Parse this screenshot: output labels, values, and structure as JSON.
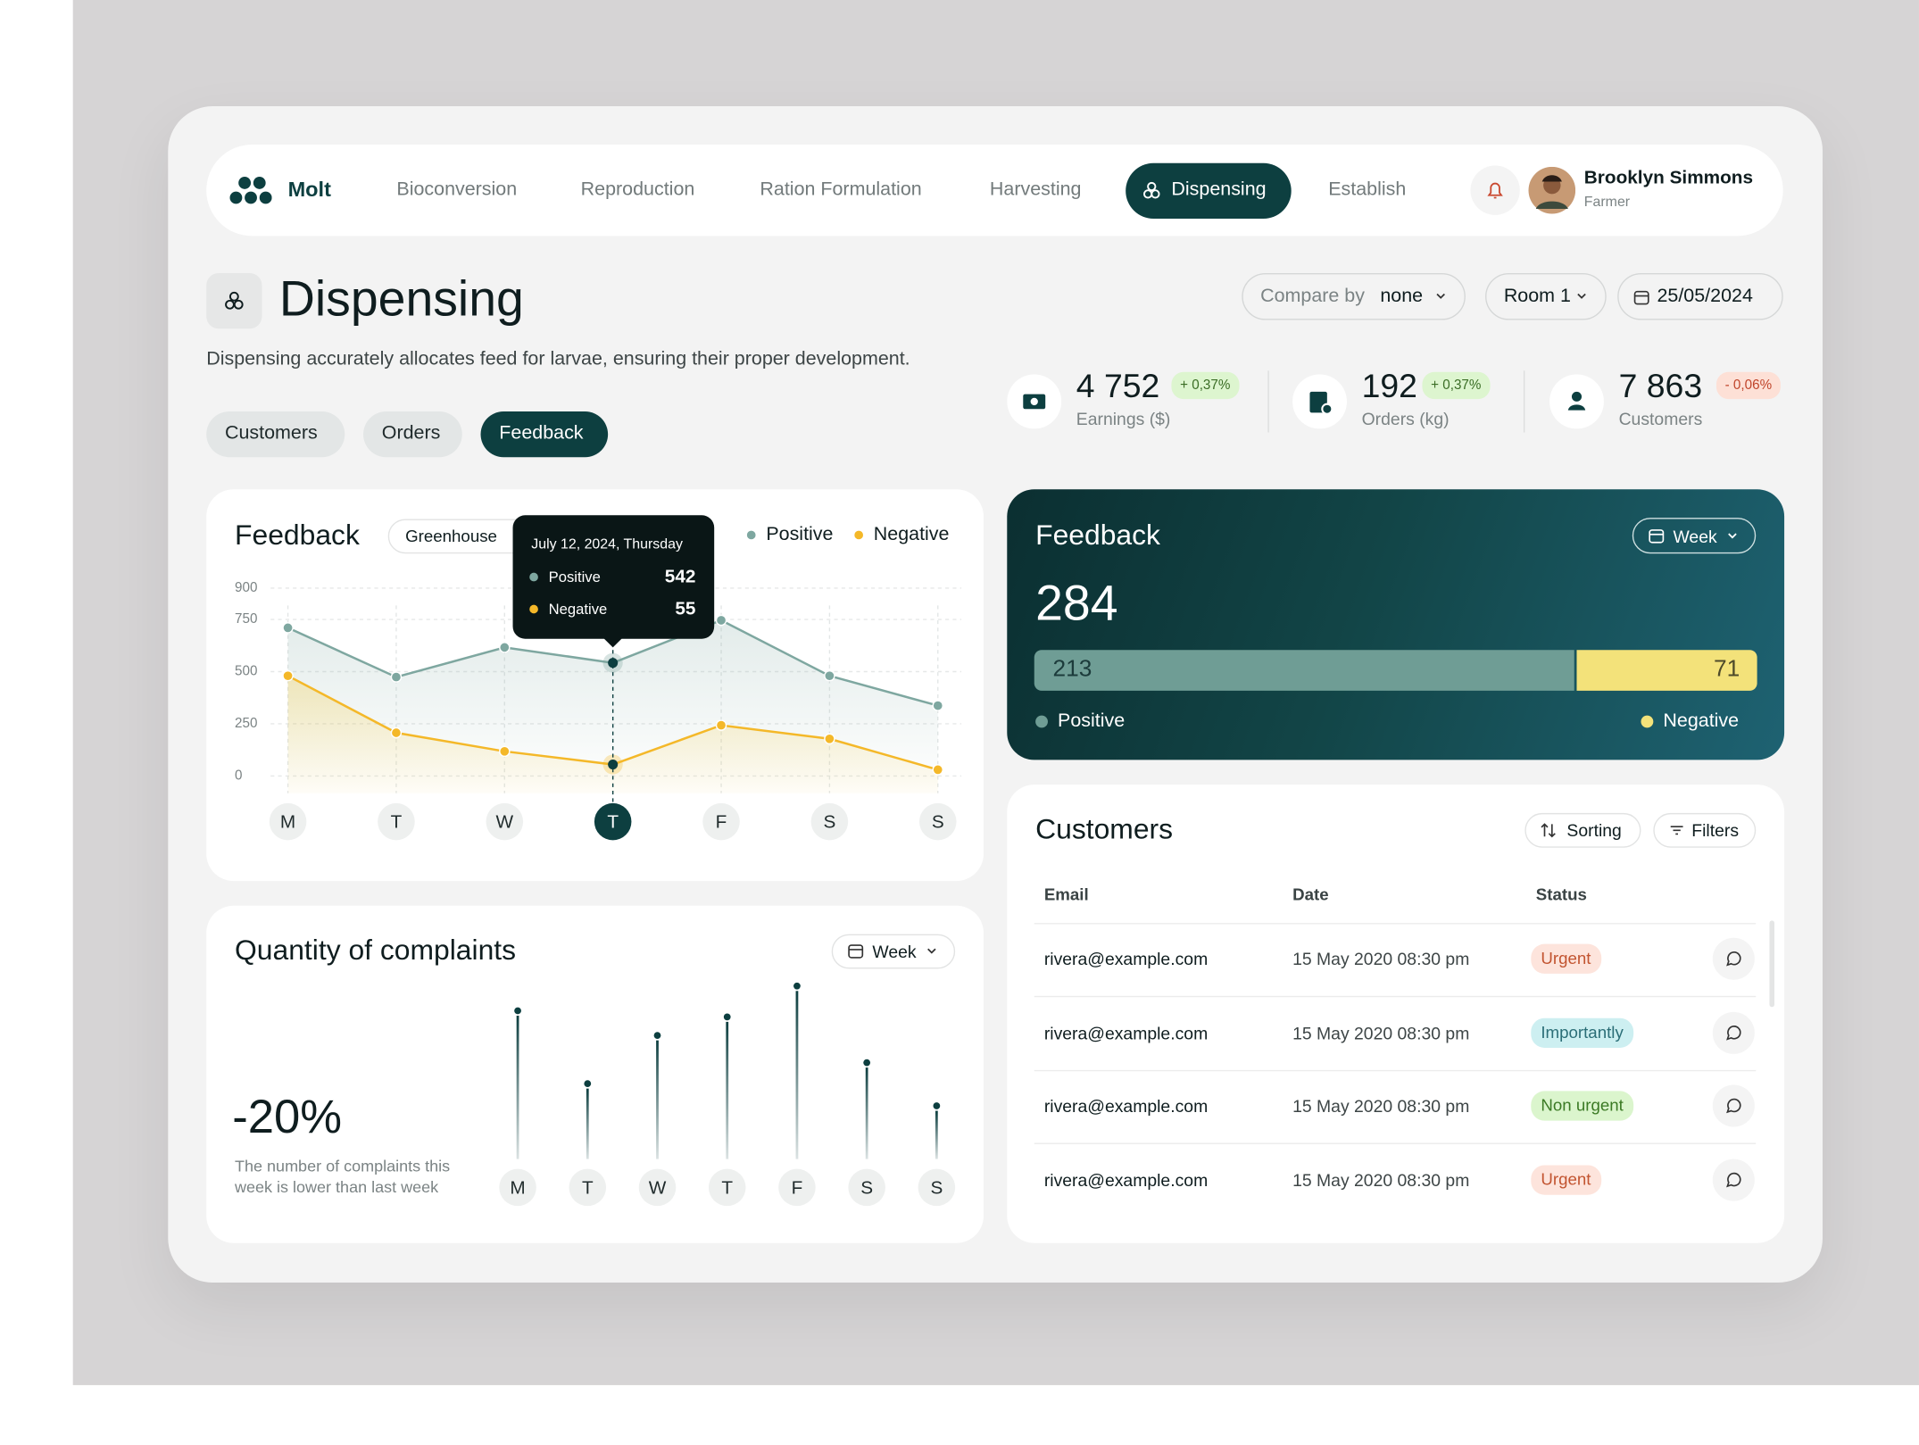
{
  "nav": {
    "logo": "Molt",
    "items": [
      "Bioconversion",
      "Reproduction",
      "Ration Formulation",
      "Harvesting",
      "Dispensing",
      "Establish"
    ]
  },
  "user": {
    "name": "Brooklyn Simmons",
    "role": "Farmer"
  },
  "header": {
    "title": "Dispensing",
    "description": "Dispensing accurately allocates feed for larvae, ensuring their proper development.",
    "compare_label": "Compare by",
    "compare_value": "none",
    "room": "Room 1",
    "date": "25/05/2024"
  },
  "tabs": [
    "Customers",
    "Orders",
    "Feedback"
  ],
  "stats": [
    {
      "value": "4 752",
      "change": "+ 0,37%",
      "label": "Earnings ($)"
    },
    {
      "value": "192",
      "change": "+ 0,37%",
      "label": "Orders (kg)"
    },
    {
      "value": "7 863",
      "change": "- 0,06%",
      "label": "Customers"
    }
  ],
  "chart_data": [
    {
      "type": "line",
      "title": "Feedback",
      "filter": "Greenhouse",
      "categories": [
        "M",
        "T",
        "W",
        "T",
        "F",
        "S",
        "S"
      ],
      "series": [
        {
          "name": "Positive",
          "color": "#7ea7a0",
          "values": [
            710,
            474,
            616,
            542,
            746,
            480,
            337
          ]
        },
        {
          "name": "Negative",
          "color": "#f4b829",
          "values": [
            480,
            207,
            118,
            55,
            243,
            178,
            30
          ]
        }
      ],
      "ylim": [
        0,
        900
      ],
      "yticks": [
        0,
        250,
        500,
        750,
        900
      ],
      "grid": true,
      "tooltip": {
        "date": "July 12, 2024, Thursday"
      }
    },
    {
      "type": "stacked-bar",
      "title": "Feedback",
      "period": "Week",
      "total": 284,
      "series": [
        {
          "name": "Positive",
          "color": "#6f9d95",
          "values": [
            213
          ]
        },
        {
          "name": "Negative",
          "color": "#f3e27a",
          "values": [
            71
          ]
        }
      ]
    },
    {
      "type": "lollipop",
      "title": "Quantity of complaints",
      "period": "Week",
      "change": "-20%",
      "note": "The number of complaints this week is lower than last week",
      "categories": [
        "M",
        "T",
        "W",
        "T",
        "F",
        "S",
        "S"
      ],
      "values": [
        116,
        57,
        96,
        111,
        136,
        74,
        39
      ],
      "color": "#0d3f40"
    }
  ],
  "table": {
    "title": "Customers",
    "sort": "Sorting",
    "filter": "Filters",
    "columns": [
      "Email",
      "Date",
      "Status"
    ],
    "rows": [
      [
        "rivera@example.com",
        "15 May 2020 08:30 pm",
        "Urgent"
      ],
      [
        "rivera@example.com",
        "15 May 2020 08:30 pm",
        "Importantly"
      ],
      [
        "rivera@example.com",
        "15 May 2020 08:30 pm",
        "Non urgent"
      ],
      [
        "rivera@example.com",
        "15 May 2020 08:30 pm",
        "Urgent"
      ]
    ]
  }
}
